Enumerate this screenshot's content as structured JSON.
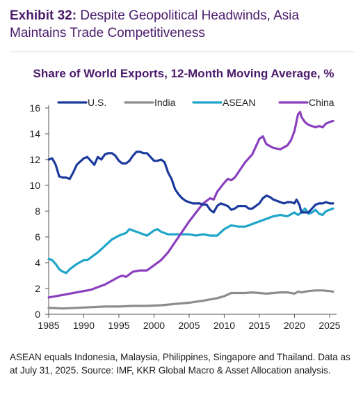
{
  "exhibit": {
    "label": "Exhibit 32:",
    "title": "Despite Geopolitical Headwinds, Asia Maintains Trade Competitiveness"
  },
  "footnote": "ASEAN equals Indonesia, Malaysia, Philippines, Singapore and Thailand. Data as at July 31, 2025. Source: IMF, KKR Global Macro & Asset Allocation analysis.",
  "colors": {
    "title": "#4a1a6b",
    "us": "#1b3a9c",
    "india": "#8c8c8c",
    "asean": "#1ea5c8",
    "china": "#8a3fbf"
  },
  "chart_data": {
    "type": "line",
    "title": "Share of World Exports, 12-Month Moving Average, %",
    "xlabel": "",
    "ylabel": "",
    "xlim": [
      1985,
      2026
    ],
    "ylim": [
      0,
      16
    ],
    "xticks": [
      1985,
      1990,
      1995,
      2000,
      2005,
      2010,
      2015,
      2020,
      2025
    ],
    "yticks": [
      0,
      2,
      4,
      6,
      8,
      10,
      12,
      14,
      16
    ],
    "grid": false,
    "legend": "top",
    "series": [
      {
        "name": "U.S.",
        "color": "#1b3a9c",
        "points": [
          [
            1985,
            12.0
          ],
          [
            1985.5,
            12.1
          ],
          [
            1986,
            11.6
          ],
          [
            1986.5,
            10.7
          ],
          [
            1987,
            10.6
          ],
          [
            1987.5,
            10.6
          ],
          [
            1988,
            10.5
          ],
          [
            1988.5,
            11.0
          ],
          [
            1989,
            11.6
          ],
          [
            1990,
            12.1
          ],
          [
            1990.5,
            12.2
          ],
          [
            1991,
            11.9
          ],
          [
            1991.5,
            11.6
          ],
          [
            1992,
            12.2
          ],
          [
            1992.5,
            12.0
          ],
          [
            1993,
            12.4
          ],
          [
            1993.5,
            12.5
          ],
          [
            1994,
            12.5
          ],
          [
            1994.5,
            12.3
          ],
          [
            1995,
            11.9
          ],
          [
            1995.5,
            11.7
          ],
          [
            1996,
            11.7
          ],
          [
            1996.5,
            11.9
          ],
          [
            1997,
            12.3
          ],
          [
            1997.5,
            12.6
          ],
          [
            1998,
            12.6
          ],
          [
            1998.5,
            12.5
          ],
          [
            1999,
            12.5
          ],
          [
            1999.5,
            12.2
          ],
          [
            2000,
            11.9
          ],
          [
            2000.5,
            11.9
          ],
          [
            2001,
            12.0
          ],
          [
            2001.5,
            11.8
          ],
          [
            2002,
            11.0
          ],
          [
            2002.5,
            10.5
          ],
          [
            2003,
            9.7
          ],
          [
            2003.5,
            9.3
          ],
          [
            2004,
            9.0
          ],
          [
            2004.5,
            8.8
          ],
          [
            2005,
            8.7
          ],
          [
            2005.5,
            8.6
          ],
          [
            2006,
            8.6
          ],
          [
            2006.5,
            8.6
          ],
          [
            2007,
            8.5
          ],
          [
            2007.5,
            8.5
          ],
          [
            2008,
            8.1
          ],
          [
            2008.5,
            7.9
          ],
          [
            2009,
            8.4
          ],
          [
            2009.5,
            8.6
          ],
          [
            2010,
            8.5
          ],
          [
            2010.5,
            8.4
          ],
          [
            2011,
            8.1
          ],
          [
            2011.5,
            8.2
          ],
          [
            2012,
            8.4
          ],
          [
            2012.5,
            8.4
          ],
          [
            2013,
            8.4
          ],
          [
            2013.5,
            8.2
          ],
          [
            2014,
            8.2
          ],
          [
            2014.5,
            8.4
          ],
          [
            2015,
            8.6
          ],
          [
            2015.5,
            9.0
          ],
          [
            2016,
            9.2
          ],
          [
            2016.5,
            9.1
          ],
          [
            2017,
            8.9
          ],
          [
            2017.5,
            8.8
          ],
          [
            2018,
            8.7
          ],
          [
            2018.5,
            8.6
          ],
          [
            2019,
            8.7
          ],
          [
            2019.5,
            8.7
          ],
          [
            2020,
            8.6
          ],
          [
            2020.3,
            8.9
          ],
          [
            2020.7,
            8.5
          ],
          [
            2021,
            7.9
          ],
          [
            2021.5,
            7.9
          ],
          [
            2022,
            7.9
          ],
          [
            2022.5,
            8.2
          ],
          [
            2023,
            8.5
          ],
          [
            2023.5,
            8.6
          ],
          [
            2024,
            8.6
          ],
          [
            2024.5,
            8.7
          ],
          [
            2025,
            8.6
          ],
          [
            2025.5,
            8.6
          ]
        ]
      },
      {
        "name": "India",
        "color": "#8c8c8c",
        "points": [
          [
            1985,
            0.5
          ],
          [
            1987,
            0.45
          ],
          [
            1989,
            0.5
          ],
          [
            1991,
            0.55
          ],
          [
            1993,
            0.6
          ],
          [
            1995,
            0.6
          ],
          [
            1997,
            0.65
          ],
          [
            1999,
            0.65
          ],
          [
            2001,
            0.7
          ],
          [
            2003,
            0.8
          ],
          [
            2005,
            0.9
          ],
          [
            2007,
            1.05
          ],
          [
            2009,
            1.25
          ],
          [
            2010,
            1.4
          ],
          [
            2011,
            1.65
          ],
          [
            2012,
            1.65
          ],
          [
            2013,
            1.65
          ],
          [
            2014,
            1.7
          ],
          [
            2015,
            1.65
          ],
          [
            2016,
            1.6
          ],
          [
            2017,
            1.65
          ],
          [
            2018,
            1.7
          ],
          [
            2019,
            1.7
          ],
          [
            2020,
            1.6
          ],
          [
            2020.5,
            1.75
          ],
          [
            2021,
            1.7
          ],
          [
            2022,
            1.8
          ],
          [
            2023,
            1.85
          ],
          [
            2024,
            1.85
          ],
          [
            2025,
            1.8
          ],
          [
            2025.5,
            1.75
          ]
        ]
      },
      {
        "name": "ASEAN",
        "color": "#1ea5c8",
        "points": [
          [
            1985,
            4.3
          ],
          [
            1985.5,
            4.2
          ],
          [
            1986,
            3.9
          ],
          [
            1986.5,
            3.5
          ],
          [
            1987,
            3.3
          ],
          [
            1987.5,
            3.2
          ],
          [
            1988,
            3.5
          ],
          [
            1989,
            3.9
          ],
          [
            1990,
            4.2
          ],
          [
            1990.5,
            4.2
          ],
          [
            1991,
            4.4
          ],
          [
            1992,
            4.8
          ],
          [
            1993,
            5.3
          ],
          [
            1994,
            5.8
          ],
          [
            1995,
            6.1
          ],
          [
            1996,
            6.3
          ],
          [
            1996.5,
            6.6
          ],
          [
            1997,
            6.5
          ],
          [
            1998,
            6.3
          ],
          [
            1999,
            6.1
          ],
          [
            2000,
            6.5
          ],
          [
            2000.5,
            6.6
          ],
          [
            2001,
            6.4
          ],
          [
            2002,
            6.2
          ],
          [
            2003,
            6.2
          ],
          [
            2004,
            6.2
          ],
          [
            2005,
            6.2
          ],
          [
            2006,
            6.1
          ],
          [
            2007,
            6.2
          ],
          [
            2008,
            6.1
          ],
          [
            2009,
            6.1
          ],
          [
            2010,
            6.6
          ],
          [
            2011,
            6.9
          ],
          [
            2012,
            6.8
          ],
          [
            2013,
            6.8
          ],
          [
            2014,
            7.0
          ],
          [
            2015,
            7.2
          ],
          [
            2016,
            7.4
          ],
          [
            2017,
            7.6
          ],
          [
            2018,
            7.7
          ],
          [
            2019,
            7.6
          ],
          [
            2020,
            7.9
          ],
          [
            2020.5,
            7.7
          ],
          [
            2021,
            7.9
          ],
          [
            2021.5,
            8.2
          ],
          [
            2022,
            7.8
          ],
          [
            2022.5,
            7.9
          ],
          [
            2023,
            8.1
          ],
          [
            2023.5,
            7.8
          ],
          [
            2024,
            7.7
          ],
          [
            2024.5,
            8.0
          ],
          [
            2025,
            8.1
          ],
          [
            2025.5,
            8.2
          ]
        ]
      },
      {
        "name": "China",
        "color": "#8a3fbf",
        "points": [
          [
            1985,
            1.3
          ],
          [
            1986,
            1.4
          ],
          [
            1987,
            1.5
          ],
          [
            1988,
            1.6
          ],
          [
            1989,
            1.7
          ],
          [
            1990,
            1.8
          ],
          [
            1991,
            1.9
          ],
          [
            1992,
            2.1
          ],
          [
            1993,
            2.3
          ],
          [
            1994,
            2.6
          ],
          [
            1995,
            2.9
          ],
          [
            1995.5,
            3.0
          ],
          [
            1996,
            2.9
          ],
          [
            1997,
            3.3
          ],
          [
            1998,
            3.4
          ],
          [
            1999,
            3.4
          ],
          [
            2000,
            3.8
          ],
          [
            2001,
            4.2
          ],
          [
            2002,
            4.8
          ],
          [
            2003,
            5.6
          ],
          [
            2004,
            6.4
          ],
          [
            2005,
            7.2
          ],
          [
            2006,
            7.9
          ],
          [
            2007,
            8.6
          ],
          [
            2008,
            9.0
          ],
          [
            2008.5,
            8.9
          ],
          [
            2009,
            9.5
          ],
          [
            2010,
            10.2
          ],
          [
            2010.5,
            10.5
          ],
          [
            2011,
            10.4
          ],
          [
            2011.5,
            10.6
          ],
          [
            2012,
            11.0
          ],
          [
            2013,
            11.8
          ],
          [
            2014,
            12.4
          ],
          [
            2015,
            13.6
          ],
          [
            2015.5,
            13.8
          ],
          [
            2016,
            13.2
          ],
          [
            2017,
            12.9
          ],
          [
            2018,
            12.8
          ],
          [
            2019,
            13.1
          ],
          [
            2019.5,
            13.5
          ],
          [
            2020,
            14.2
          ],
          [
            2020.5,
            15.5
          ],
          [
            2020.8,
            15.7
          ],
          [
            2021,
            15.3
          ],
          [
            2021.5,
            14.9
          ],
          [
            2022,
            14.7
          ],
          [
            2022.5,
            14.6
          ],
          [
            2023,
            14.5
          ],
          [
            2023.5,
            14.6
          ],
          [
            2024,
            14.5
          ],
          [
            2024.5,
            14.8
          ],
          [
            2025,
            14.9
          ],
          [
            2025.5,
            15.0
          ]
        ]
      }
    ]
  }
}
